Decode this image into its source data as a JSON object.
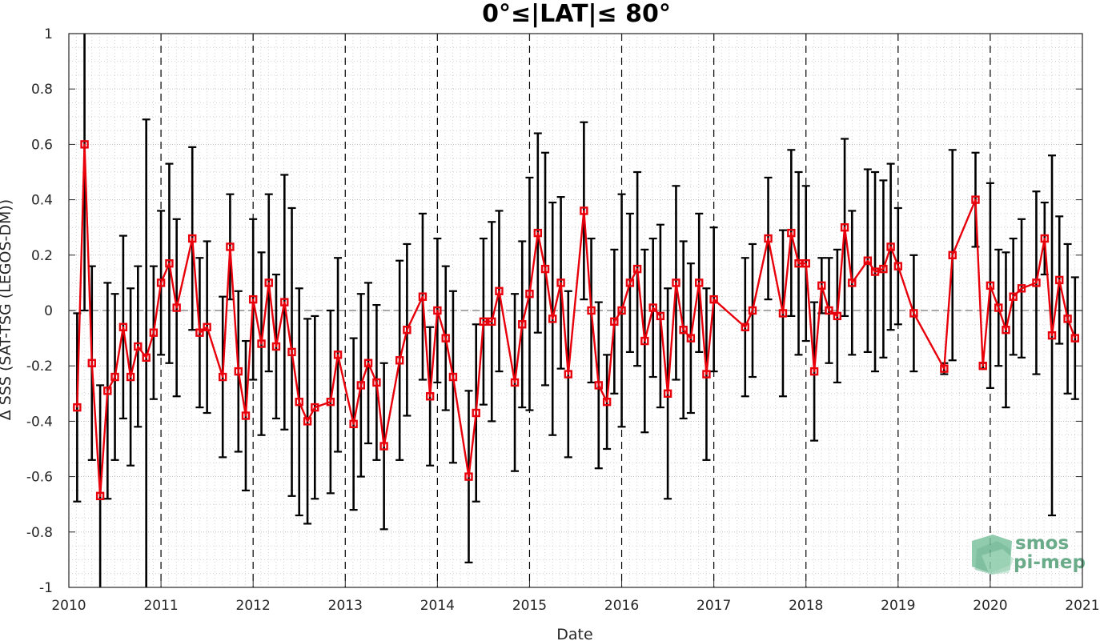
{
  "chart_data": {
    "type": "line",
    "title": "0°≤|LAT|≤ 80°",
    "xlabel": "Date",
    "ylabel": "Δ SSS (SAT-TSG (LEGOS-DM))",
    "xlim": [
      2010,
      2021
    ],
    "ylim": [
      -1,
      1
    ],
    "x_ticks": [
      "2010",
      "2011",
      "2012",
      "2013",
      "2014",
      "2015",
      "2016",
      "2017",
      "2018",
      "2019",
      "2020",
      "2021"
    ],
    "y_ticks": [
      "-1",
      "-0.8",
      "-0.6",
      "-0.4",
      "-0.2",
      "0",
      "0.2",
      "0.4",
      "0.6",
      "0.8",
      "1"
    ],
    "grid": "dotted major and minor",
    "year_separators": "dashed vertical lines at each year",
    "zero_line": "dashed horizontal line at 0",
    "colors": {
      "series": "#e8000b",
      "errorbars": "#000000",
      "axes": "#262626",
      "logo": "#6aab8a"
    },
    "series": [
      {
        "x": [
          2010.09,
          2010.17,
          2010.25,
          2010.34,
          2010.42,
          2010.5,
          2010.59,
          2010.67,
          2010.75,
          2010.84,
          2010.92,
          2011.0,
          2011.09,
          2011.17,
          2011.34,
          2011.42,
          2011.5,
          2011.67,
          2011.75,
          2011.84,
          2011.92,
          2012.0,
          2012.09,
          2012.17,
          2012.25,
          2012.34,
          2012.42,
          2012.5,
          2012.59,
          2012.67,
          2012.84,
          2012.92,
          2013.09,
          2013.17,
          2013.25,
          2013.34,
          2013.42,
          2013.59,
          2013.67,
          2013.84,
          2013.92,
          2014.0,
          2014.09,
          2014.17,
          2014.34,
          2014.42,
          2014.5,
          2014.59,
          2014.67,
          2014.84,
          2014.92,
          2015.0,
          2015.09,
          2015.17,
          2015.25,
          2015.34,
          2015.42,
          2015.59,
          2015.67,
          2015.75,
          2015.84,
          2015.92,
          2016.0,
          2016.09,
          2016.17,
          2016.25,
          2016.34,
          2016.42,
          2016.5,
          2016.59,
          2016.67,
          2016.75,
          2016.84,
          2016.92,
          2017.0,
          2017.34,
          2017.42,
          2017.59,
          2017.75,
          2017.84,
          2017.92,
          2018.0,
          2018.09,
          2018.17,
          2018.25,
          2018.34,
          2018.42,
          2018.5,
          2018.67,
          2018.75,
          2018.84,
          2018.92,
          2019.0,
          2019.17,
          2019.5,
          2019.59,
          2019.84,
          2019.92,
          2020.0,
          2020.09,
          2020.17,
          2020.25,
          2020.34,
          2020.5,
          2020.59,
          2020.67,
          2020.75,
          2020.84,
          2020.92
        ],
        "y": [
          -0.35,
          0.6,
          -0.19,
          -0.67,
          -0.29,
          -0.24,
          -0.06,
          -0.24,
          -0.13,
          -0.17,
          -0.08,
          0.1,
          0.17,
          0.01,
          0.26,
          -0.08,
          -0.06,
          -0.24,
          0.23,
          -0.22,
          -0.38,
          0.04,
          -0.12,
          0.1,
          -0.13,
          0.03,
          -0.15,
          -0.33,
          -0.4,
          -0.35,
          -0.33,
          -0.16,
          -0.41,
          -0.27,
          -0.19,
          -0.26,
          -0.49,
          -0.18,
          -0.07,
          0.05,
          -0.31,
          0.0,
          -0.1,
          -0.24,
          -0.6,
          -0.37,
          -0.04,
          -0.04,
          0.07,
          -0.26,
          -0.05,
          0.06,
          0.28,
          0.15,
          -0.03,
          0.1,
          -0.23,
          0.36,
          0.0,
          -0.27,
          -0.33,
          -0.04,
          0.0,
          0.1,
          0.15,
          -0.11,
          0.01,
          -0.02,
          -0.3,
          0.1,
          -0.07,
          -0.1,
          0.1,
          -0.23,
          0.04,
          -0.06,
          0.0,
          0.26,
          -0.01,
          0.28,
          0.17,
          0.17,
          -0.22,
          0.09,
          0.0,
          -0.02,
          0.3,
          0.1,
          0.18,
          0.14,
          0.15,
          0.23,
          0.16,
          -0.01,
          -0.21,
          0.2,
          0.4,
          -0.2,
          0.09,
          0.01,
          -0.07,
          0.05,
          0.08,
          0.1,
          0.26,
          -0.09,
          0.11,
          -0.03,
          -0.1
        ],
        "err": [
          0.34,
          0.6,
          0.35,
          0.4,
          0.39,
          0.3,
          0.33,
          0.32,
          0.29,
          0.86,
          0.24,
          0.26,
          0.36,
          0.32,
          0.33,
          0.27,
          0.31,
          0.29,
          0.19,
          0.29,
          0.27,
          0.29,
          0.33,
          0.32,
          0.26,
          0.46,
          0.52,
          0.41,
          0.37,
          0.33,
          0.33,
          0.35,
          0.31,
          0.33,
          0.29,
          0.28,
          0.3,
          0.36,
          0.31,
          0.3,
          0.25,
          0.26,
          0.26,
          0.31,
          0.31,
          0.32,
          0.3,
          0.36,
          0.29,
          0.32,
          0.3,
          0.42,
          0.36,
          0.42,
          0.42,
          0.31,
          0.3,
          0.32,
          0.26,
          0.3,
          0.17,
          0.26,
          0.42,
          0.25,
          0.35,
          0.33,
          0.25,
          0.33,
          0.38,
          0.35,
          0.32,
          0.27,
          0.25,
          0.31,
          0.26,
          0.25,
          0.24,
          0.22,
          0.3,
          0.3,
          0.33,
          0.28,
          0.25,
          0.1,
          0.19,
          0.24,
          0.32,
          0.26,
          0.33,
          0.36,
          0.32,
          0.3,
          0.21,
          0.21,
          0.02,
          0.38,
          0.17,
          0.01,
          0.37,
          0.21,
          0.28,
          0.21,
          0.25,
          0.33,
          0.13,
          0.65,
          0.23,
          0.27,
          0.22
        ]
      }
    ]
  },
  "logo": {
    "line1": "smos",
    "line2": "pi-mep"
  }
}
